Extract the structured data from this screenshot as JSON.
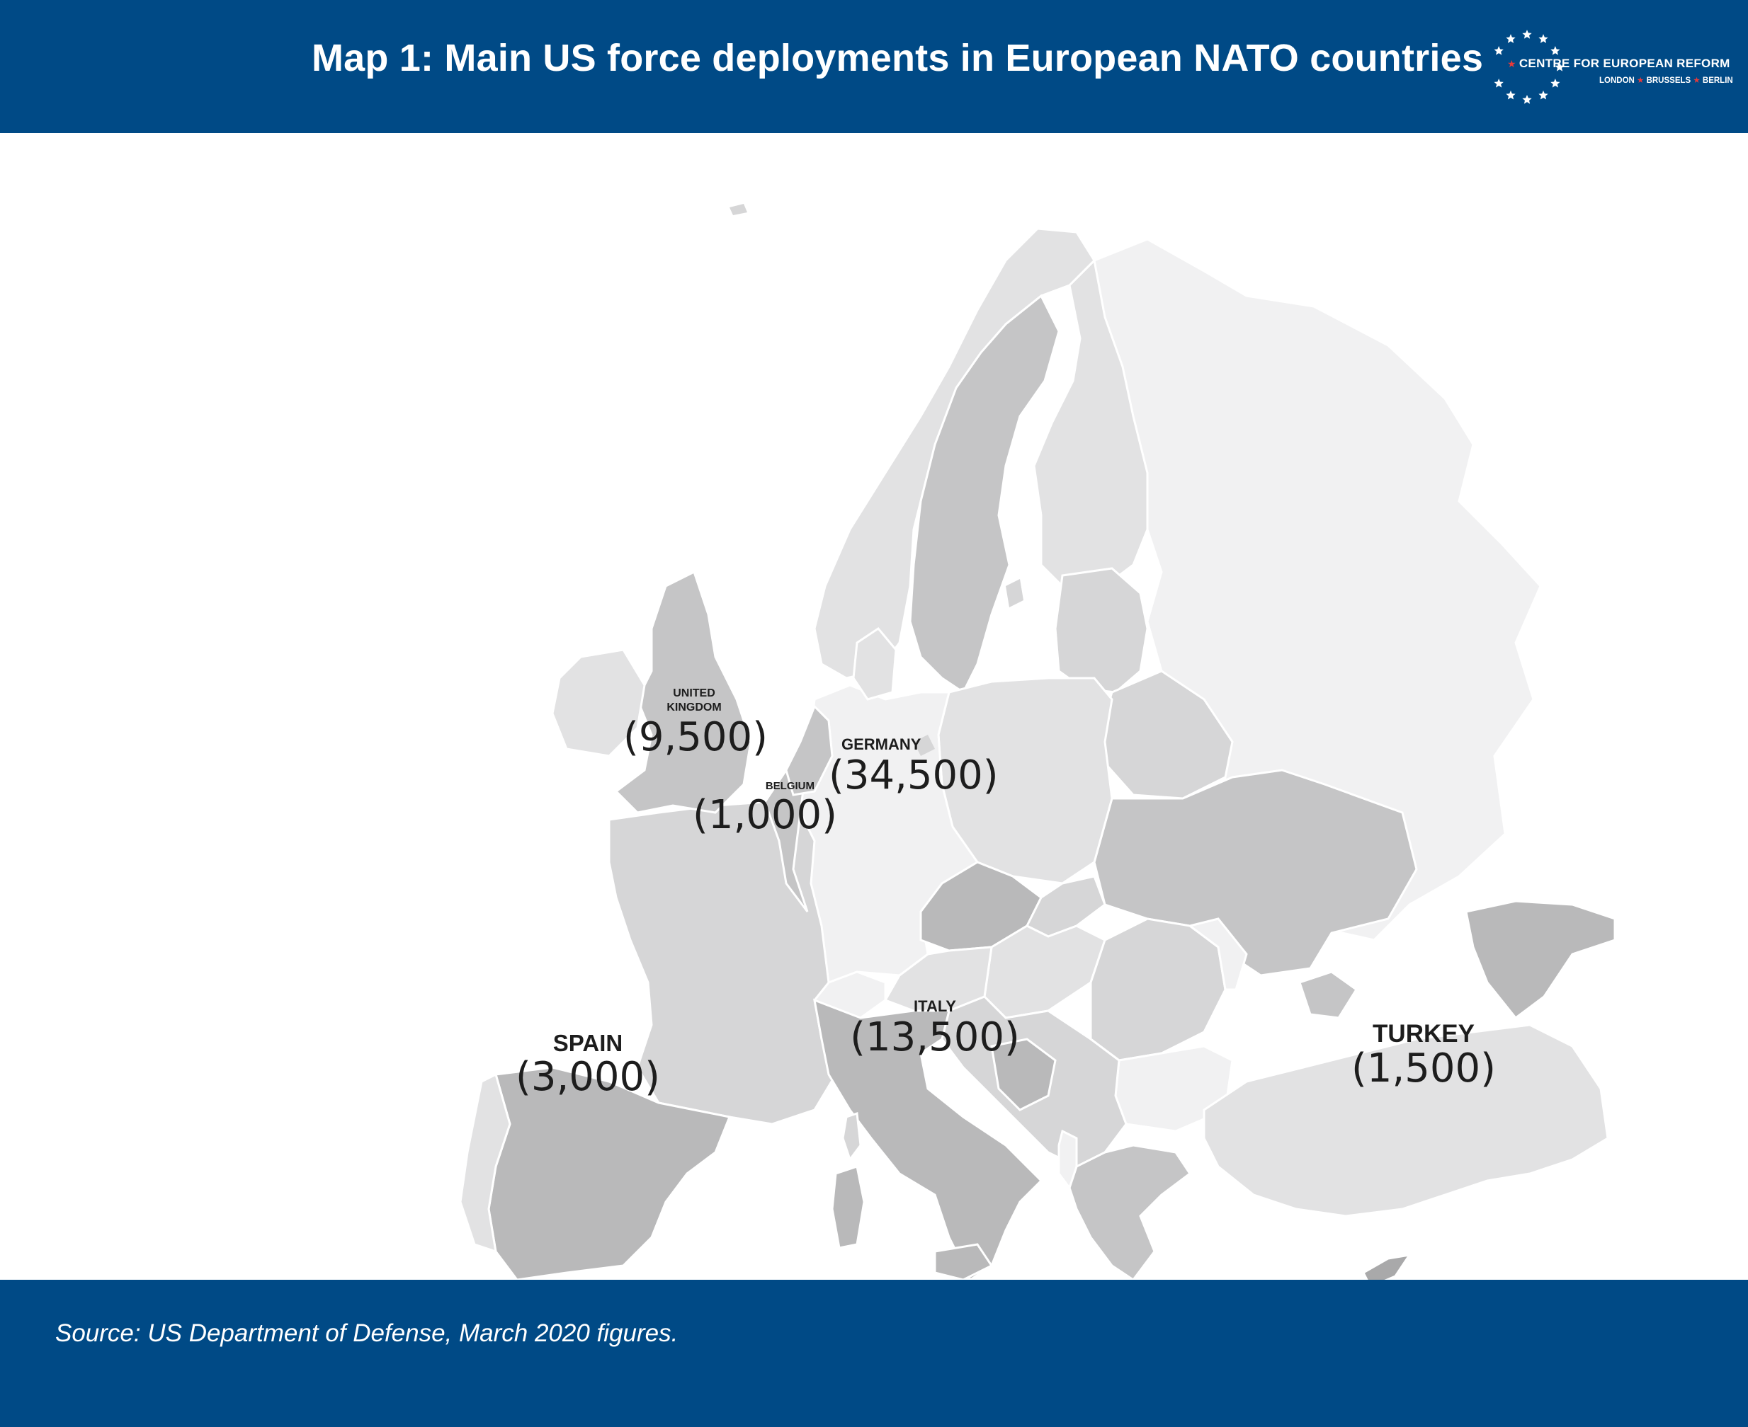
{
  "header": {
    "title": "Map 1: Main US force deployments in European NATO countries",
    "bg_color": "#004a86"
  },
  "logo": {
    "name": "CENTRE FOR EUROPEAN REFORM",
    "cities": [
      "LONDON",
      "BRUSSELS",
      "BERLIN"
    ],
    "icon": "star-circle-icon",
    "star_color": "#ffffff",
    "accent_color": "#e43b3b"
  },
  "map": {
    "shade_colors": {
      "lightest": "#f1f1f2",
      "light": "#e2e2e3",
      "mid": "#d6d6d7",
      "dark": "#c5c5c6",
      "darker": "#b9b9ba",
      "darkest": "#a9a9aa"
    },
    "countries": [
      {
        "key": "uk",
        "name_lines": [
          "UNITED",
          "KINGDOM"
        ],
        "troops": "(9,500)"
      },
      {
        "key": "belgium",
        "name_lines": [
          "BELGIUM"
        ],
        "troops": "(1,000)"
      },
      {
        "key": "germany",
        "name_lines": [
          "GERMANY"
        ],
        "troops": "(34,500)"
      },
      {
        "key": "italy",
        "name_lines": [
          "ITALY"
        ],
        "troops": "(13,500)"
      },
      {
        "key": "spain",
        "name_lines": [
          "SPAIN"
        ],
        "troops": "(3,000)"
      },
      {
        "key": "turkey",
        "name_lines": [
          "TURKEY"
        ],
        "troops": "(1,500)"
      }
    ]
  },
  "footer": {
    "source": "Source: US Department of Defense, March 2020 figures.",
    "bg_color": "#004a86"
  }
}
